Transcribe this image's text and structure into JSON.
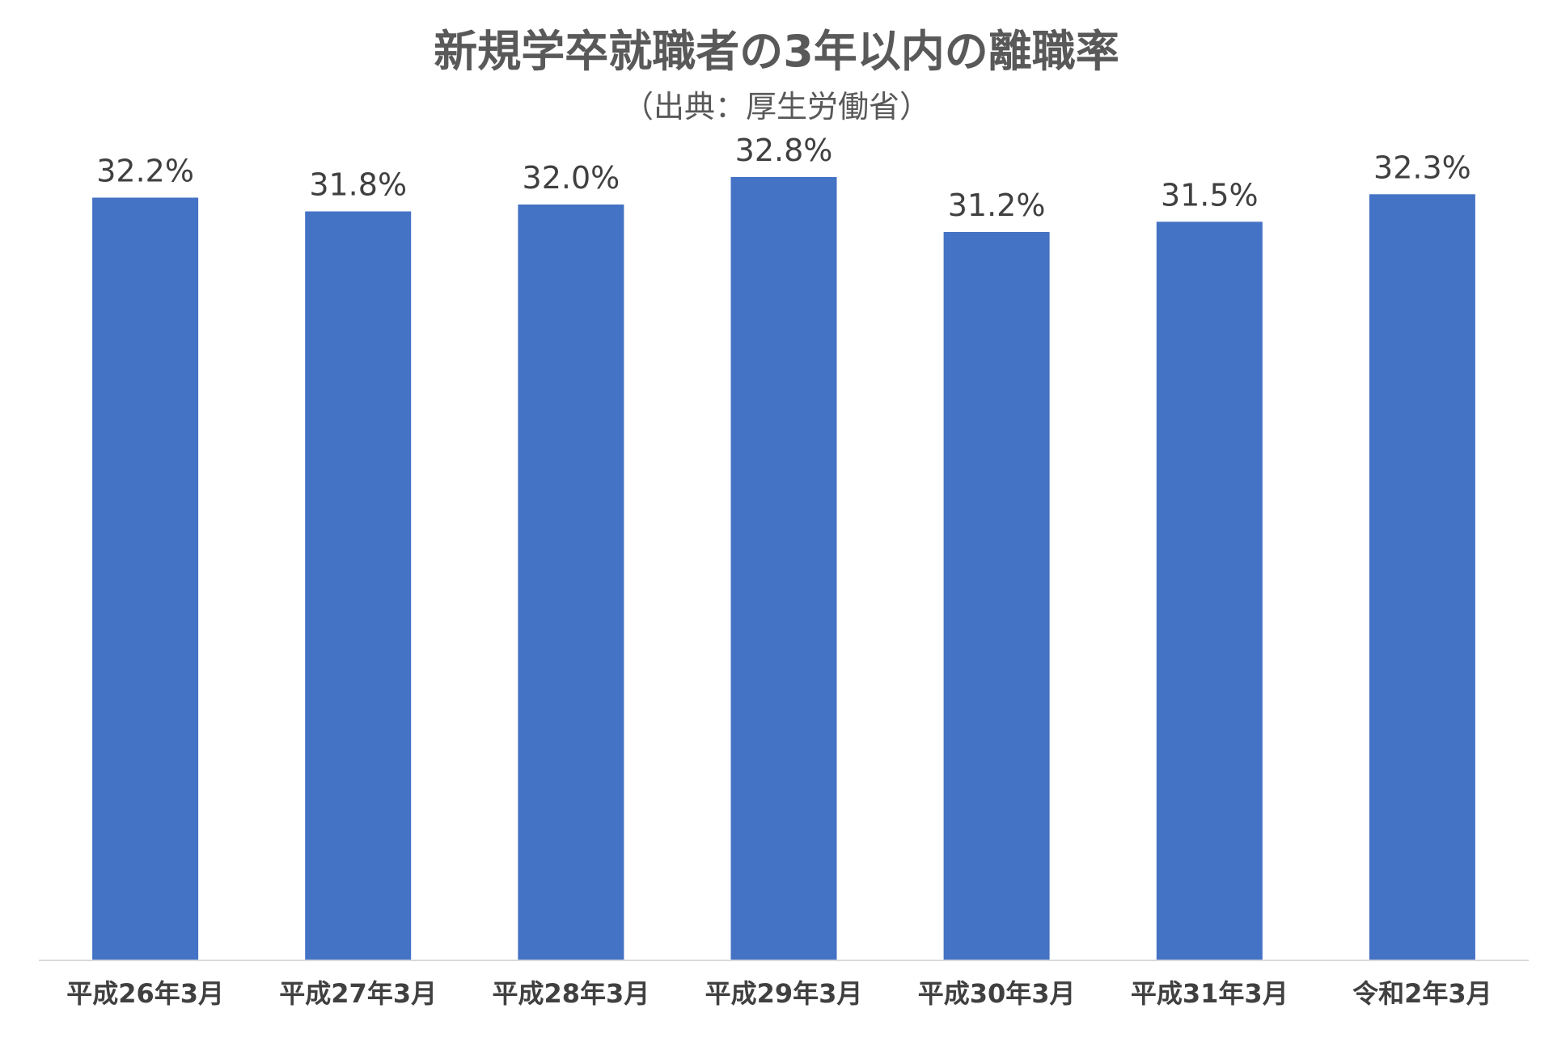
{
  "chart_data": {
    "type": "bar",
    "title": "新規学卒就職者の3年以内の離職率",
    "subtitle": "（出典：厚生労働省）",
    "categories": [
      "平成26年3月",
      "平成27年3月",
      "平成28年3月",
      "平成29年3月",
      "平成30年3月",
      "平成31年3月",
      "令和2年3月"
    ],
    "values": [
      32.2,
      31.8,
      32.0,
      32.8,
      31.2,
      31.5,
      32.3
    ],
    "data_labels": [
      "32.2%",
      "31.8%",
      "32.0%",
      "32.8%",
      "31.2%",
      "31.5%",
      "32.3%"
    ],
    "unit": "%",
    "xlabel": "",
    "ylabel": "",
    "ylim": [
      10,
      34
    ],
    "grid": false,
    "legend": "none",
    "bar_color": "#4472C4",
    "axis_color": "#D9D9D9"
  }
}
